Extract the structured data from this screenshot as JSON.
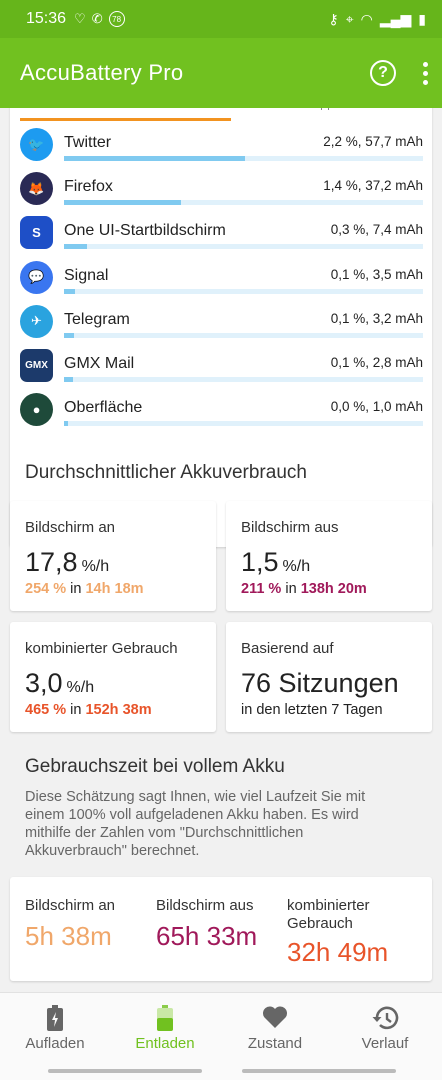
{
  "status_bar": {
    "time": "15:36",
    "badge": "78"
  },
  "app_bar": {
    "title": "AccuBattery Pro",
    "help_icon": "?"
  },
  "apps": [
    {
      "name": "Twitter",
      "usage": "2,2 %, 57,7 mAh",
      "share": 0.505,
      "icon": "twitter-icon",
      "color": "#1d9bf0",
      "glyph": "🐦"
    },
    {
      "name": "Firefox",
      "usage": "1,4 %, 37,2 mAh",
      "share": 0.325,
      "icon": "firefox-icon",
      "color": "#2a2a55",
      "glyph": "🦊"
    },
    {
      "name": "One UI-Startbildschirm",
      "usage": "0,3 %, 7,4 mAh",
      "share": 0.065,
      "icon": "one-ui-home-icon",
      "color": "#1e4fc7",
      "glyph": "S"
    },
    {
      "name": "Signal",
      "usage": "0,1 %, 3,5 mAh",
      "share": 0.03,
      "icon": "signal-icon",
      "color": "#3a76f0",
      "glyph": "💬"
    },
    {
      "name": "Telegram",
      "usage": "0,1 %, 3,2 mAh",
      "share": 0.028,
      "icon": "telegram-icon",
      "color": "#2aa3df",
      "glyph": "✈"
    },
    {
      "name": "GMX Mail",
      "usage": "0,1 %, 2,8 mAh",
      "share": 0.025,
      "icon": "gmx-mail-icon",
      "color": "#1c3a6b",
      "glyph": "GMX"
    },
    {
      "name": "Oberfläche",
      "usage": "0,0 %, 1,0 mAh",
      "share": 0.01,
      "icon": "system-ui-icon",
      "color": "#1e4a3a",
      "glyph": "●"
    }
  ],
  "average_section": {
    "title": "Durchschnittlicher Akkuverbrauch"
  },
  "stats": {
    "screen_on": {
      "label": "Bildschirm an",
      "value": "17,8",
      "unit": "%/h",
      "pct": "254 %",
      "in": "in",
      "time": "14h 18m",
      "color": "#f0a76a"
    },
    "screen_off": {
      "label": "Bildschirm aus",
      "value": "1,5",
      "unit": "%/h",
      "pct": "211 %",
      "in": "in",
      "time": "138h 20m",
      "color": "#a0195a"
    },
    "combined": {
      "label": "kombinierter Gebrauch",
      "value": "3,0",
      "unit": "%/h",
      "pct": "465 %",
      "in": "in",
      "time": "152h 38m",
      "color": "#e8542a"
    },
    "based_on": {
      "label": "Basierend auf",
      "value": "76 Sitzungen",
      "sub": "in den letzten 7 Tagen"
    }
  },
  "full_battery": {
    "title": "Gebrauchszeit bei vollem Akku",
    "description": "Diese Schätzung sagt Ihnen, wie viel Laufzeit Sie mit einem 100% voll aufgeladenen Akku haben. Es wird mithilfe der Zahlen vom \"Durchschnittlichen Akkuverbrauch\" berechnet.",
    "screen_on": {
      "label": "Bildschirm an",
      "value": "5h 38m",
      "color": "#f0a76a"
    },
    "screen_off": {
      "label": "Bildschirm aus",
      "value": "65h 33m",
      "color": "#a0195a"
    },
    "combined": {
      "label": "kombinierter Gebrauch",
      "value": "32h 49m",
      "color": "#e8542a"
    }
  },
  "nav": [
    {
      "label": "Aufladen",
      "icon": "battery-charging-icon",
      "active": false
    },
    {
      "label": "Entladen",
      "icon": "battery-discharging-icon",
      "active": true
    },
    {
      "label": "Zustand",
      "icon": "heart-icon",
      "active": false
    },
    {
      "label": "Verlauf",
      "icon": "history-icon",
      "active": false
    }
  ],
  "colors": {
    "status_bar": "#66b51b",
    "app_bar": "#71c120",
    "accent": "#71c120",
    "bar_fill": "#80caf0",
    "bar_track": "#e0f1fb"
  }
}
